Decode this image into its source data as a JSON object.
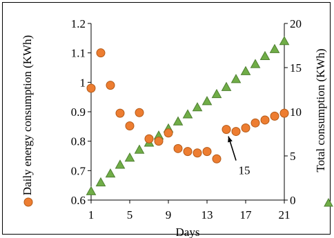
{
  "chart_data": {
    "type": "scatter",
    "title": "",
    "xlabel": "Days",
    "ylabel_left": "Daily energy consumption (KWh)",
    "ylabel_right": "Total consumption (KWh)",
    "xlim": [
      1,
      21
    ],
    "ylim_left": [
      0.6,
      1.2
    ],
    "ylim_right": [
      0,
      20
    ],
    "x_ticks": [
      1,
      5,
      9,
      13,
      17,
      21
    ],
    "y_ticks_left": [
      0.6,
      0.7,
      0.8,
      0.9,
      1,
      1.1,
      1.2
    ],
    "y_ticks_right": [
      0,
      5,
      10,
      15,
      20
    ],
    "x_tick_labels": [
      "1",
      "5",
      "9",
      "13",
      "17",
      "21"
    ],
    "y_tick_labels_left": [
      "0.6",
      "0.7",
      "0.8",
      "0.9",
      "1",
      "1.1",
      "1.2"
    ],
    "y_tick_labels_right": [
      "0",
      "5",
      "10",
      "15",
      "20"
    ],
    "grid": false,
    "series": [
      {
        "name": "",
        "axis": "left",
        "marker": "circle",
        "color": "#ED7D31",
        "x": [
          1,
          2,
          3,
          4,
          5,
          6,
          7,
          8,
          9,
          10,
          11,
          12,
          13,
          14,
          15,
          16,
          17,
          18,
          19,
          20,
          21
        ],
        "values": [
          0.98,
          1.1,
          0.99,
          0.895,
          0.852,
          0.897,
          0.808,
          0.8,
          0.828,
          0.775,
          0.765,
          0.76,
          0.765,
          0.74,
          0.84,
          0.833,
          0.845,
          0.862,
          0.872,
          0.885,
          0.895
        ]
      },
      {
        "name": "",
        "axis": "right",
        "marker": "triangle",
        "color": "#70AD47",
        "x": [
          1,
          2,
          3,
          4,
          5,
          6,
          7,
          8,
          9,
          10,
          11,
          12,
          13,
          14,
          15,
          16,
          17,
          18,
          19,
          20,
          21
        ],
        "values": [
          1,
          2,
          3,
          4,
          4.8,
          5.7,
          6.5,
          7.3,
          8.1,
          8.9,
          9.7,
          10.5,
          11.2,
          12,
          12.8,
          13.7,
          14.6,
          15.4,
          16.3,
          17.1,
          18
        ]
      }
    ],
    "annotations": [
      {
        "text": "15",
        "arrow_to_x": 15,
        "arrow_to_y": 0.84
      }
    ]
  }
}
